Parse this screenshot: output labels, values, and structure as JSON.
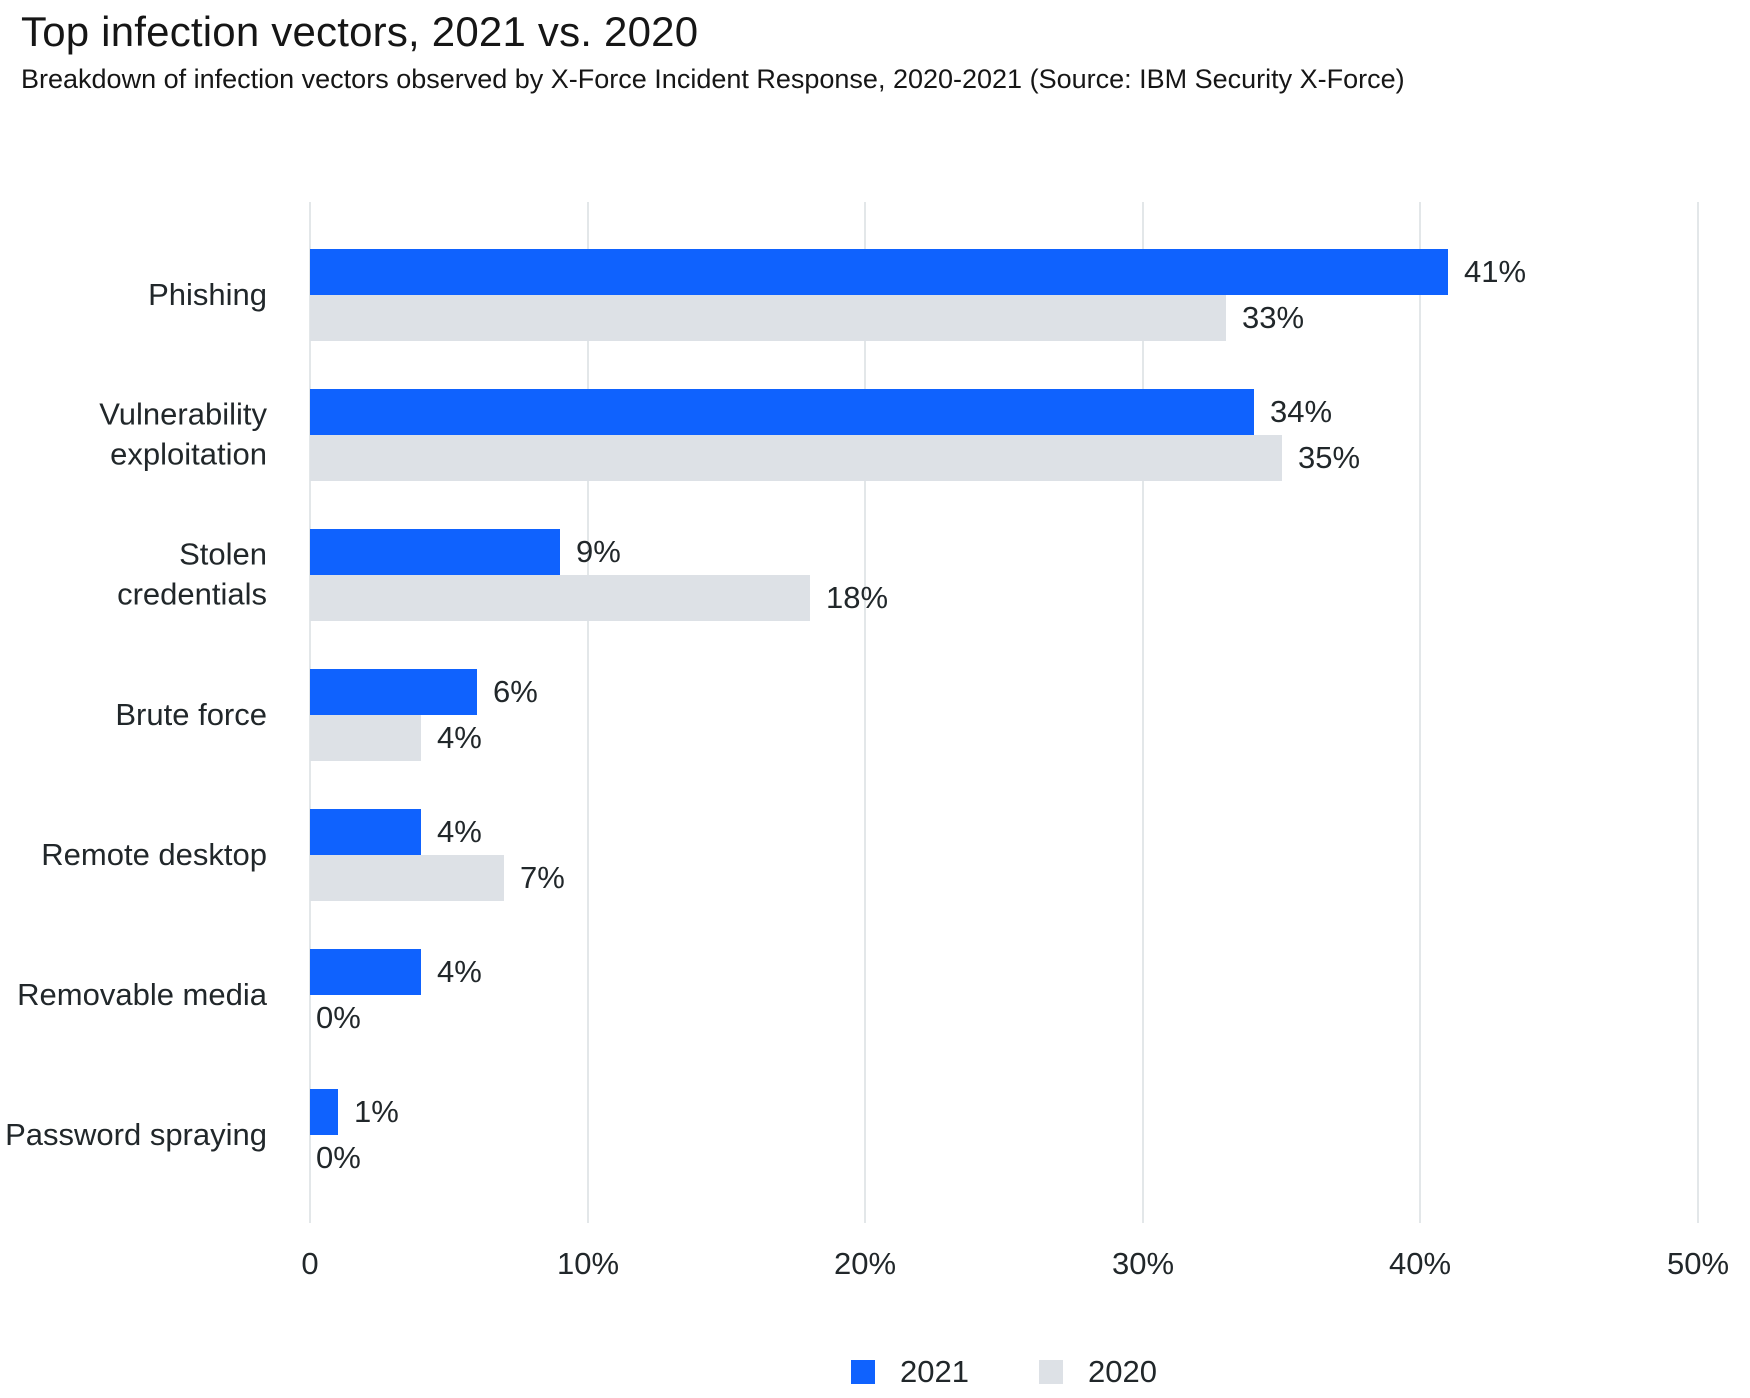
{
  "header": {
    "title": "Top infection vectors, 2021 vs. 2020",
    "subtitle": "Breakdown of infection vectors observed by X-Force Incident Response, 2020-2021 (Source: IBM Security X-Force)"
  },
  "chart_data": {
    "type": "bar",
    "orientation": "horizontal",
    "title": "Top infection vectors, 2021 vs. 2020",
    "categories": [
      "Phishing",
      "Vulnerability exploitation",
      "Stolen credentials",
      "Brute force",
      "Remote desktop",
      "Removable media",
      "Password spraying"
    ],
    "category_display": [
      "Phishing",
      "Vulnerability\nexploitation",
      "Stolen\ncredentials",
      "Brute force",
      "Remote desktop",
      "Removable media",
      "Password spraying"
    ],
    "series": [
      {
        "name": "2021",
        "color": "#0f62fe",
        "values": [
          41,
          34,
          9,
          6,
          4,
          4,
          1
        ]
      },
      {
        "name": "2020",
        "color": "#dde1e6",
        "values": [
          33,
          35,
          18,
          4,
          7,
          0,
          0
        ]
      }
    ],
    "value_suffix": "%",
    "xlim": [
      0,
      50
    ],
    "x_ticks": [
      "0",
      "10%",
      "20%",
      "30%",
      "40%",
      "50%"
    ],
    "grid": "vertical-only",
    "legend_position": "bottom-center"
  },
  "legend": {
    "items": [
      {
        "label": "2021",
        "color": "#0f62fe"
      },
      {
        "label": "2020",
        "color": "#dde1e6"
      }
    ]
  },
  "colors": {
    "accent_blue": "#0f62fe",
    "bar_gray": "#dde1e6",
    "gridline": "#e3e7e9",
    "text_dark": "#21272a",
    "title_text": "#161616",
    "background": "#ffffff"
  }
}
